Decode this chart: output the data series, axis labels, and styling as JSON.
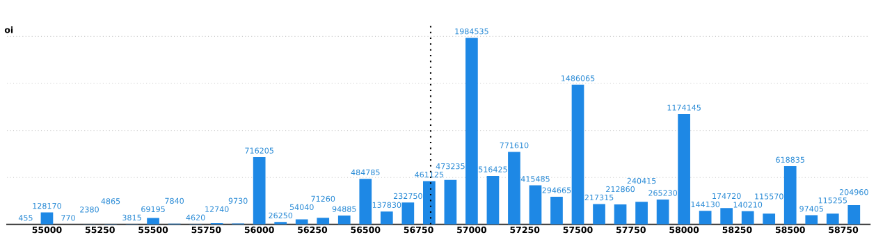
{
  "chart_data": {
    "type": "bar",
    "ylabel": "oi",
    "x": [
      54900,
      55000,
      55100,
      55200,
      55300,
      55400,
      55500,
      55600,
      55700,
      55800,
      55900,
      56000,
      56100,
      56200,
      56300,
      56400,
      56500,
      56600,
      56700,
      56800,
      56900,
      57000,
      57100,
      57200,
      57300,
      57400,
      57500,
      57600,
      57700,
      57800,
      57900,
      58000,
      58100,
      58200,
      58300,
      58400,
      58500,
      58600,
      58700,
      58800
    ],
    "values": [
      455,
      128170,
      770,
      2380,
      4865,
      3815,
      69195,
      7840,
      4620,
      12740,
      9730,
      716205,
      26250,
      54040,
      71260,
      94885,
      484785,
      137830,
      232750,
      461125,
      473235,
      1984535,
      516425,
      771610,
      415485,
      294665,
      1486065,
      217315,
      212860,
      240415,
      265230,
      1174145,
      144130,
      174720,
      140210,
      115570,
      618835,
      97405,
      115255,
      204960
    ],
    "color": "#1e88e5",
    "data_labels": true,
    "xlim": [
      54812,
      58875
    ],
    "xticks": [
      55000,
      55250,
      55500,
      55750,
      56000,
      56250,
      56500,
      56750,
      57000,
      57250,
      57500,
      57750,
      58000,
      58250,
      58500,
      58750
    ],
    "ylim": [
      0,
      2150000
    ],
    "yticks": [
      {
        "value": 500000,
        "label": null
      },
      {
        "value": 1000000,
        "label": null
      },
      {
        "value": 1500000,
        "label": null
      },
      {
        "value": 2000000,
        "label": null
      }
    ],
    "grid": "y",
    "ref_lines": [
      {
        "axis": "x",
        "value": 56807,
        "line_style": "dotted",
        "color": "#000000"
      }
    ]
  }
}
